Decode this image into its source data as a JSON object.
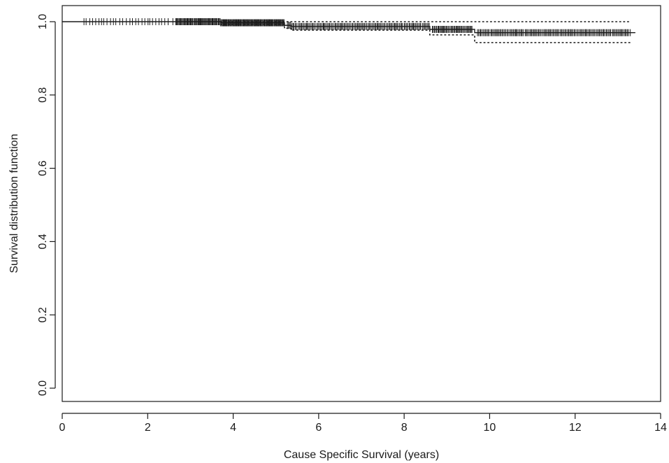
{
  "chart_data": {
    "type": "line",
    "title": "",
    "xlabel": "Cause Specific Survival (years)",
    "ylabel": "Survival distribution function",
    "xlim": [
      0,
      14
    ],
    "ylim": [
      0.0,
      1.0
    ],
    "x_ticks": [
      0,
      2,
      4,
      6,
      8,
      10,
      12,
      14
    ],
    "y_ticks": [
      0.0,
      0.2,
      0.4,
      0.6,
      0.8,
      1.0
    ],
    "x_tick_labels": [
      "0",
      "2",
      "4",
      "6",
      "8",
      "10",
      "12",
      "14"
    ],
    "y_tick_labels": [
      "0.0",
      "0.2",
      "0.4",
      "0.6",
      "0.8",
      "1.0"
    ],
    "grid": false,
    "legend": "none",
    "series": [
      {
        "role": "estimate",
        "line_style": "solid",
        "steps": [
          [
            0,
            1.0
          ],
          [
            3.7,
            0.997
          ],
          [
            5.2,
            0.99
          ],
          [
            5.35,
            0.987
          ],
          [
            8.6,
            0.979
          ],
          [
            9.65,
            0.97
          ],
          [
            13.4,
            0.97
          ]
        ]
      },
      {
        "role": "upper-confidence-band",
        "line_style": "dotted",
        "steps": [
          [
            3.7,
            1.0
          ],
          [
            13.3,
            1.0
          ]
        ]
      },
      {
        "role": "lower-confidence-band",
        "line_style": "dotted",
        "steps": [
          [
            3.7,
            0.993
          ],
          [
            5.2,
            0.982
          ],
          [
            5.35,
            0.977
          ],
          [
            8.6,
            0.964
          ],
          [
            9.65,
            0.943
          ],
          [
            13.3,
            0.943
          ]
        ]
      }
    ],
    "censor_marks": {
      "segments": [
        {
          "from": 0.45,
          "to": 2.6,
          "count": 30
        },
        {
          "from": 2.65,
          "to": 3.7,
          "count": 55
        },
        {
          "from": 3.7,
          "to": 5.2,
          "count": 90
        },
        {
          "from": 5.25,
          "to": 8.6,
          "count": 120
        },
        {
          "from": 8.65,
          "to": 9.6,
          "count": 40
        },
        {
          "from": 9.7,
          "to": 13.3,
          "count": 130
        }
      ]
    },
    "colors": {
      "line": "#1a1a1a",
      "axis": "#1a1a1a",
      "background": "#ffffff"
    }
  }
}
